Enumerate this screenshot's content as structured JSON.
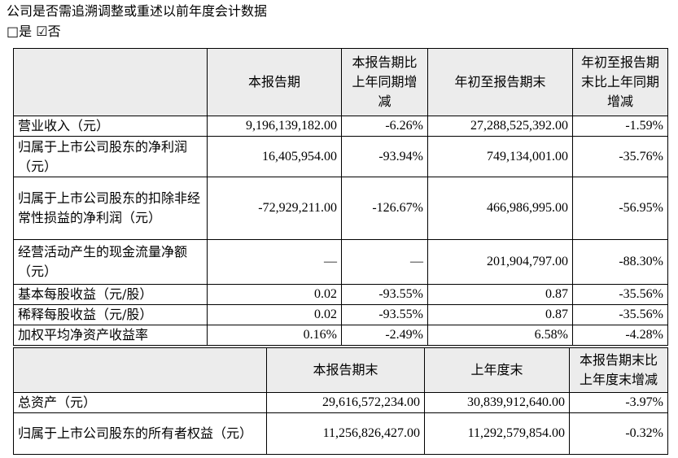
{
  "heading": "公司是否需追溯调整或重述以前年度会计数据",
  "choice": {
    "yes_box": "□",
    "yes_label": "是",
    "no_box": "☑",
    "no_label": "否"
  },
  "table1": {
    "headers": [
      "",
      "本报告期",
      "本报告期比上年同期增减",
      "年初至报告期末",
      "年初至报告期末比上年同期增减"
    ],
    "rows": [
      {
        "label": "营业收入（元）",
        "current": "9,196,139,182.00",
        "current_change": "-6.26%",
        "ytd": "27,288,525,392.00",
        "ytd_change": "-1.59%"
      },
      {
        "label": "归属于上市公司股东的净利润（元）",
        "current": "16,405,954.00",
        "current_change": "-93.94%",
        "ytd": "749,134,001.00",
        "ytd_change": "-35.76%"
      },
      {
        "label": "归属于上市公司股东的扣除非经常性损益的净利润（元）",
        "current": "-72,929,211.00",
        "current_change": "-126.67%",
        "ytd": "466,986,995.00",
        "ytd_change": "-56.95%"
      },
      {
        "label": "经营活动产生的现金流量净额（元）",
        "current": "—",
        "current_change": "—",
        "ytd": "201,904,797.00",
        "ytd_change": "-88.30%"
      },
      {
        "label": "基本每股收益（元/股）",
        "current": "0.02",
        "current_change": "-93.55%",
        "ytd": "0.87",
        "ytd_change": "-35.56%"
      },
      {
        "label": "稀释每股收益（元/股）",
        "current": "0.02",
        "current_change": "-93.55%",
        "ytd": "0.87",
        "ytd_change": "-35.56%"
      },
      {
        "label": "加权平均净资产收益率",
        "current": "0.16%",
        "current_change": "-2.49%",
        "ytd": "6.58%",
        "ytd_change": "-4.28%"
      }
    ]
  },
  "table2": {
    "headers": [
      "",
      "本报告期末",
      "上年度末",
      "本报告期末比上年度末增减"
    ],
    "rows": [
      {
        "label": "总资产（元）",
        "current_end": "29,616,572,234.00",
        "prior_year_end": "30,839,912,640.00",
        "change": "-3.97%"
      },
      {
        "label": "归属于上市公司股东的所有者权益（元）",
        "current_end": "11,256,826,427.00",
        "prior_year_end": "11,292,579,854.00",
        "change": "-0.32%"
      }
    ]
  }
}
